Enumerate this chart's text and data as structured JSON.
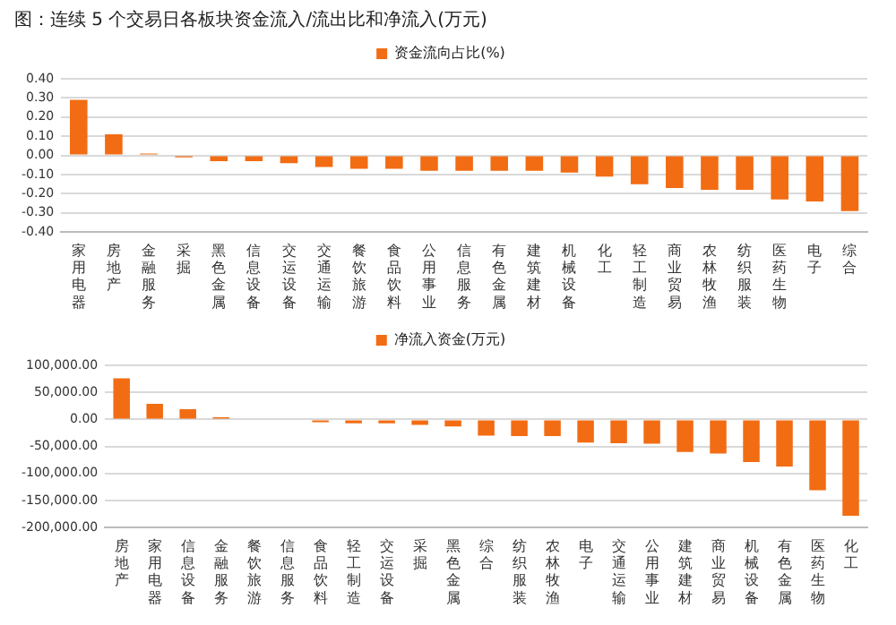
{
  "chart_data": [
    {
      "type": "bar",
      "title": "图：连续 5 个交易日各板块资金流入/流出比和净流入(万元)",
      "categories": [
        "家用电器",
        "房地产",
        "金融服务",
        "采掘",
        "黑色金属",
        "信息设备",
        "交运设备",
        "交通运输",
        "餐饮旅游",
        "食品饮料",
        "公用事业",
        "信息服务",
        "有色金属",
        "建筑建材",
        "机械设备",
        "化工",
        "轻工制造",
        "商业贸易",
        "农林牧渔",
        "纺织服装",
        "医药生物",
        "电子",
        "综合"
      ],
      "series": [
        {
          "name": "资金流向占比(%)",
          "color": "#f26c13",
          "values": [
            0.29,
            0.11,
            0.01,
            -0.01,
            -0.03,
            -0.03,
            -0.04,
            -0.06,
            -0.07,
            -0.07,
            -0.08,
            -0.08,
            -0.08,
            -0.08,
            -0.09,
            -0.11,
            -0.15,
            -0.17,
            -0.18,
            -0.18,
            -0.23,
            -0.24,
            -0.29
          ]
        }
      ],
      "ylim": [
        -0.4,
        0.4
      ],
      "yticks": [
        {
          "value": -0.4,
          "label": "-0.40"
        },
        {
          "value": -0.3,
          "label": "-0.30"
        },
        {
          "value": -0.2,
          "label": "-0.20"
        },
        {
          "value": -0.1,
          "label": "-0.10"
        },
        {
          "value": 0,
          "label": "0.00"
        },
        {
          "value": 0.1,
          "label": "0.10"
        },
        {
          "value": 0.2,
          "label": "0.20"
        },
        {
          "value": 0.3,
          "label": "0.30"
        },
        {
          "value": 0.4,
          "label": "0.40"
        }
      ],
      "grid": "y",
      "legend": "top"
    },
    {
      "type": "bar",
      "categories": [
        "房地产",
        "家用电器",
        "信息设备",
        "金融服务",
        "餐饮旅游",
        "信息服务",
        "食品饮料",
        "轻工制造",
        "交运设备",
        "采掘",
        "黑色金属",
        "综合",
        "纺织服装",
        "农林牧渔",
        "电子",
        "交通运输",
        "公用事业",
        "建筑建材",
        "商业贸易",
        "机械设备",
        "有色金属",
        "医药生物",
        "化工"
      ],
      "series": [
        {
          "name": "净流入资金(万元)",
          "color": "#f26c13",
          "values": [
            76000,
            29000,
            19000,
            4000,
            null,
            null,
            -5000,
            -7000,
            -7000,
            -10000,
            -13000,
            -30000,
            -31000,
            -31000,
            -43000,
            -44000,
            -45000,
            -60000,
            -63000,
            -79000,
            -87000,
            -131000,
            -178000
          ]
        }
      ],
      "ylim": [
        -200000,
        100000
      ],
      "yticks": [
        {
          "value": -200000,
          "label": "-200,000.00"
        },
        {
          "value": -150000,
          "label": "-150,000.00"
        },
        {
          "value": -100000,
          "label": "-100,000.00"
        },
        {
          "value": -50000,
          "label": "-50,000.00"
        },
        {
          "value": 0,
          "label": "0.00"
        },
        {
          "value": 50000,
          "label": "50,000.00"
        },
        {
          "value": 100000,
          "label": "100,000.00"
        }
      ],
      "grid": "y",
      "legend": "top"
    }
  ]
}
